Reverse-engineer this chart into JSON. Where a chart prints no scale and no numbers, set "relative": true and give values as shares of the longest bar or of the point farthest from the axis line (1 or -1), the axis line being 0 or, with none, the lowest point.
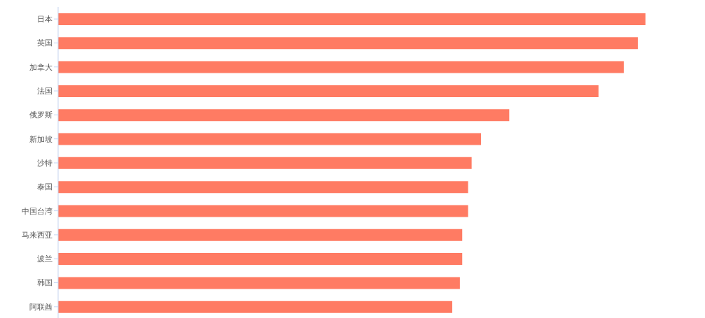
{
  "chart_data": {
    "type": "bar",
    "orientation": "horizontal",
    "relative": true,
    "categories": [
      "日本",
      "英国",
      "加拿大",
      "法国",
      "俄罗斯",
      "新加坡",
      "沙特",
      "泰国",
      "中国台湾",
      "马来西亚",
      "波兰",
      "韩国",
      "阿联酋"
    ],
    "values": [
      1,
      0.987,
      0.963,
      0.92,
      0.768,
      0.72,
      0.704,
      0.698,
      0.698,
      0.688,
      0.688,
      0.684,
      0.671
    ],
    "color": "#ff7b63"
  }
}
